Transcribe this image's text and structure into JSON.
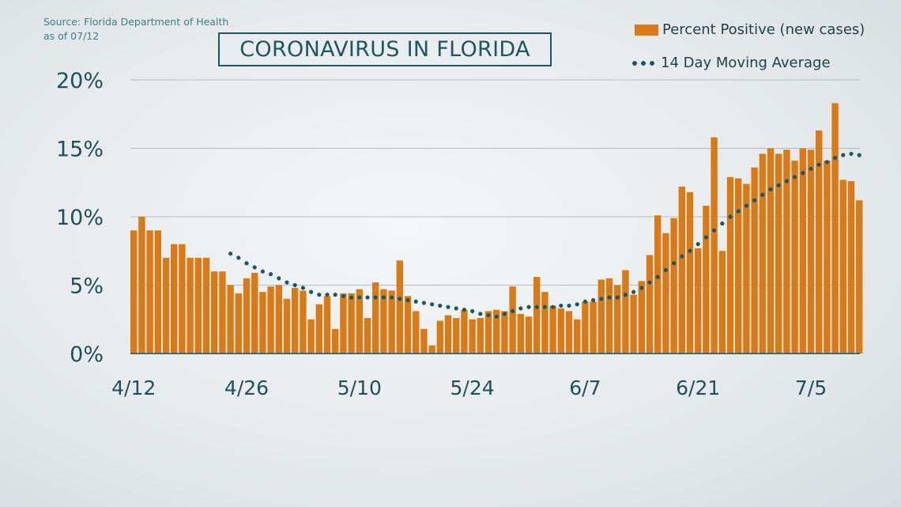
{
  "source": {
    "line1": "Source: Florida Department of Health",
    "line2": "as of 07/12"
  },
  "chart_data": {
    "type": "bar",
    "title": "CORONAVIRUS IN FLORIDA",
    "xlabel": "",
    "ylabel": "",
    "ylim": [
      0,
      20
    ],
    "yticks": [
      "0%",
      "5%",
      "10%",
      "15%",
      "20%"
    ],
    "xticks": [
      "4/12",
      "4/26",
      "5/10",
      "5/24",
      "6/7",
      "6/21",
      "7/5"
    ],
    "grid": true,
    "legend_position": "top-right",
    "colors": {
      "bars": "#d97a16",
      "average": "#1c5863",
      "grid": "#aebfc4",
      "axis": "#1f4f5a"
    },
    "series": [
      {
        "name": "Percent Positive (new cases)",
        "type": "bar",
        "start_date": "4/12",
        "values": [
          9.0,
          10.0,
          9.0,
          9.0,
          7.0,
          8.0,
          8.0,
          7.0,
          7.0,
          7.0,
          6.0,
          6.0,
          5.0,
          4.4,
          5.5,
          5.9,
          4.5,
          4.9,
          5.0,
          4.0,
          4.8,
          4.6,
          2.5,
          3.6,
          4.2,
          1.8,
          4.4,
          4.4,
          4.7,
          2.6,
          5.2,
          4.7,
          4.6,
          6.8,
          4.2,
          3.1,
          1.8,
          0.6,
          2.4,
          2.8,
          2.6,
          3.2,
          2.5,
          2.6,
          3.1,
          3.2,
          3.1,
          4.9,
          2.9,
          2.7,
          5.6,
          4.5,
          3.5,
          3.3,
          3.1,
          2.5,
          3.8,
          3.8,
          5.4,
          5.5,
          5.0,
          6.1,
          4.3,
          5.3,
          7.2,
          10.1,
          8.8,
          9.9,
          12.2,
          11.8,
          7.7,
          10.8,
          15.8,
          7.5,
          12.9,
          12.8,
          12.4,
          13.6,
          14.6,
          15.0,
          14.6,
          14.9,
          14.1,
          15.0,
          14.9,
          16.3,
          14.1,
          18.3,
          12.7,
          12.6,
          11.2
        ]
      },
      {
        "name": "14 Day Moving Average",
        "type": "dotted-line",
        "start_date": "4/25",
        "values": [
          7.3,
          7.0,
          6.6,
          6.3,
          6.0,
          5.8,
          5.5,
          5.2,
          5.0,
          4.8,
          4.5,
          4.3,
          4.3,
          4.3,
          4.2,
          4.1,
          4.1,
          4.1,
          4.1,
          4.1,
          4.1,
          4.0,
          3.9,
          3.8,
          3.7,
          3.6,
          3.5,
          3.4,
          3.3,
          3.2,
          3.1,
          2.9,
          2.8,
          2.7,
          2.9,
          3.1,
          3.3,
          3.4,
          3.4,
          3.4,
          3.4,
          3.5,
          3.5,
          3.6,
          3.8,
          3.9,
          4.0,
          4.1,
          4.1,
          4.3,
          4.5,
          4.8,
          5.2,
          5.6,
          6.1,
          6.6,
          7.1,
          7.5,
          8.0,
          8.5,
          9.0,
          9.5,
          10.0,
          10.4,
          10.8,
          11.2,
          11.6,
          12.0,
          12.3,
          12.6,
          12.9,
          13.2,
          13.5,
          13.8,
          14.0,
          14.3,
          14.5,
          14.6,
          14.5
        ]
      }
    ]
  }
}
